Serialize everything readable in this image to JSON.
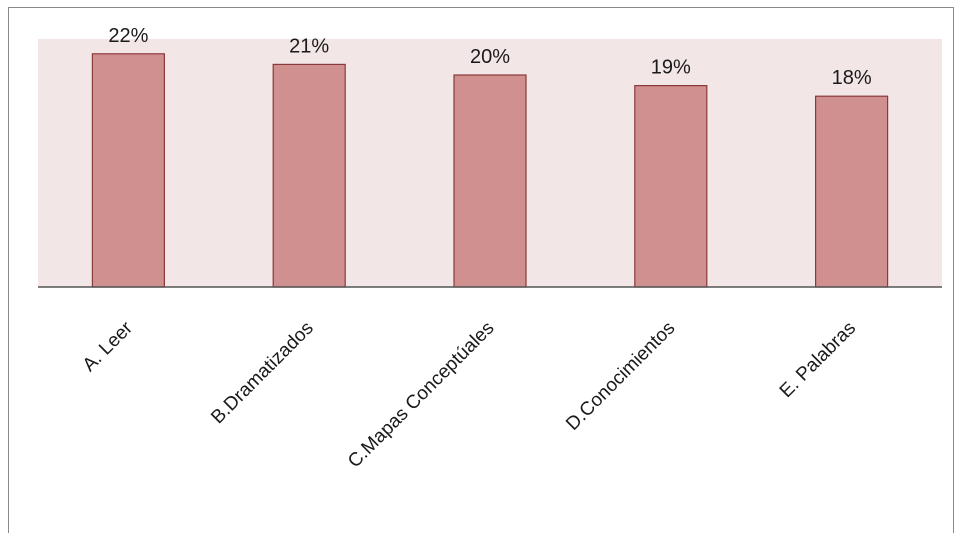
{
  "colors": {
    "bar_fill": "#d19090",
    "bar_stroke": "#8b3a3a",
    "plot_background": "#f3e6e6",
    "axis_line": "#555555"
  },
  "chart_data": {
    "type": "bar",
    "categories": [
      "A. Leer",
      "B.Dramatizados",
      "C.Mapas Conceptúales",
      "D.Conocimientos",
      "E. Palabras"
    ],
    "values": [
      22,
      21,
      20,
      19,
      18
    ],
    "data_labels": [
      "22%",
      "21%",
      "20%",
      "19%",
      "18%"
    ],
    "unit": "%",
    "title": "",
    "xlabel": "",
    "ylabel": "",
    "ylim": [
      0,
      24
    ],
    "grid": false,
    "legend": "none",
    "category_label_rotation": "-45"
  }
}
